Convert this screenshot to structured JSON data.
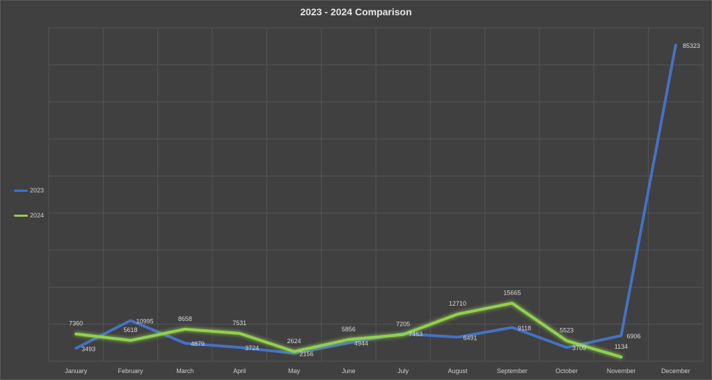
{
  "chart_data": {
    "type": "line",
    "title": "2023 - 2024 Comparison",
    "xlabel": "",
    "ylabel": "",
    "ylim": [
      0,
      90000
    ],
    "grid": true,
    "legend_position": "left",
    "categories": [
      "January",
      "February",
      "March",
      "April",
      "May",
      "June",
      "July",
      "August",
      "September",
      "October",
      "November",
      "December"
    ],
    "series": [
      {
        "name": "2023",
        "color": "#4472c4",
        "values": [
          3493,
          10995,
          4879,
          3724,
          2156,
          4944,
          7463,
          6491,
          9118,
          3709,
          6906,
          85323
        ]
      },
      {
        "name": "2024",
        "color": "#92d050",
        "values": [
          7360,
          5618,
          8658,
          7531,
          2624,
          5856,
          7205,
          12710,
          15665,
          5523,
          1134,
          null
        ]
      }
    ]
  }
}
